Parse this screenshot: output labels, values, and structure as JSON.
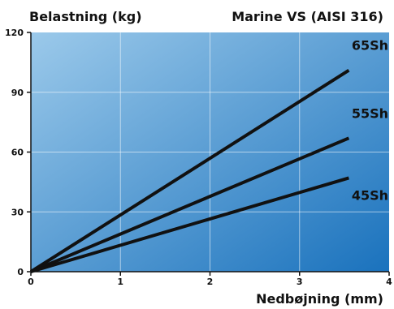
{
  "chart_data": {
    "type": "line",
    "title": "Marine VS (AISI 316)",
    "ylabel": "Belastning (kg)",
    "xlabel": "Nedbøjning (mm)",
    "xlim": [
      0,
      4
    ],
    "ylim": [
      0,
      120
    ],
    "x_ticks": [
      0,
      1,
      2,
      3,
      4
    ],
    "y_ticks": [
      0,
      30,
      60,
      90,
      120
    ],
    "grid": true,
    "background_gradient": [
      "#9bc9ea",
      "#1a72bd"
    ],
    "line_color": "#111111",
    "series": [
      {
        "name": "65Sh",
        "x": [
          0,
          3.55
        ],
        "y": [
          0,
          101
        ]
      },
      {
        "name": "55Sh",
        "x": [
          0,
          3.55
        ],
        "y": [
          0,
          67
        ]
      },
      {
        "name": "45Sh",
        "x": [
          0,
          3.55
        ],
        "y": [
          0,
          47
        ]
      }
    ]
  }
}
